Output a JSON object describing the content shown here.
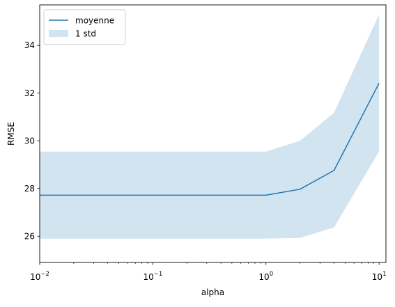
{
  "chart_data": {
    "type": "line",
    "title": "",
    "xlabel": "alpha",
    "ylabel": "RMSE",
    "x_scale": "log",
    "xlim": [
      0.01,
      11.5
    ],
    "ylim": [
      24.9,
      35.7
    ],
    "grid": false,
    "legend_position": "top-left",
    "x_ticks": [
      {
        "value": 0.01,
        "base": "10",
        "exp": "−2"
      },
      {
        "value": 0.1,
        "base": "10",
        "exp": "−1"
      },
      {
        "value": 1,
        "base": "10",
        "exp": "0"
      },
      {
        "value": 10,
        "base": "10",
        "exp": "1"
      }
    ],
    "y_ticks": [
      {
        "value": 26,
        "label": "26"
      },
      {
        "value": 28,
        "label": "28"
      },
      {
        "value": 30,
        "label": "30"
      },
      {
        "value": 32,
        "label": "32"
      },
      {
        "value": 34,
        "label": "34"
      }
    ],
    "x": [
      0.01,
      0.1,
      1,
      2,
      4,
      10
    ],
    "series": [
      {
        "name": "moyenne",
        "kind": "line",
        "color": "#1f77b4",
        "values": [
          27.72,
          27.72,
          27.72,
          27.97,
          28.76,
          32.42
        ]
      },
      {
        "name": "1 std",
        "kind": "band",
        "color": "#1f77b4",
        "opacity": 0.2,
        "lower": [
          25.9,
          25.9,
          25.9,
          25.93,
          26.37,
          29.56
        ],
        "upper": [
          29.55,
          29.55,
          29.55,
          30.0,
          31.18,
          35.3
        ]
      }
    ]
  }
}
